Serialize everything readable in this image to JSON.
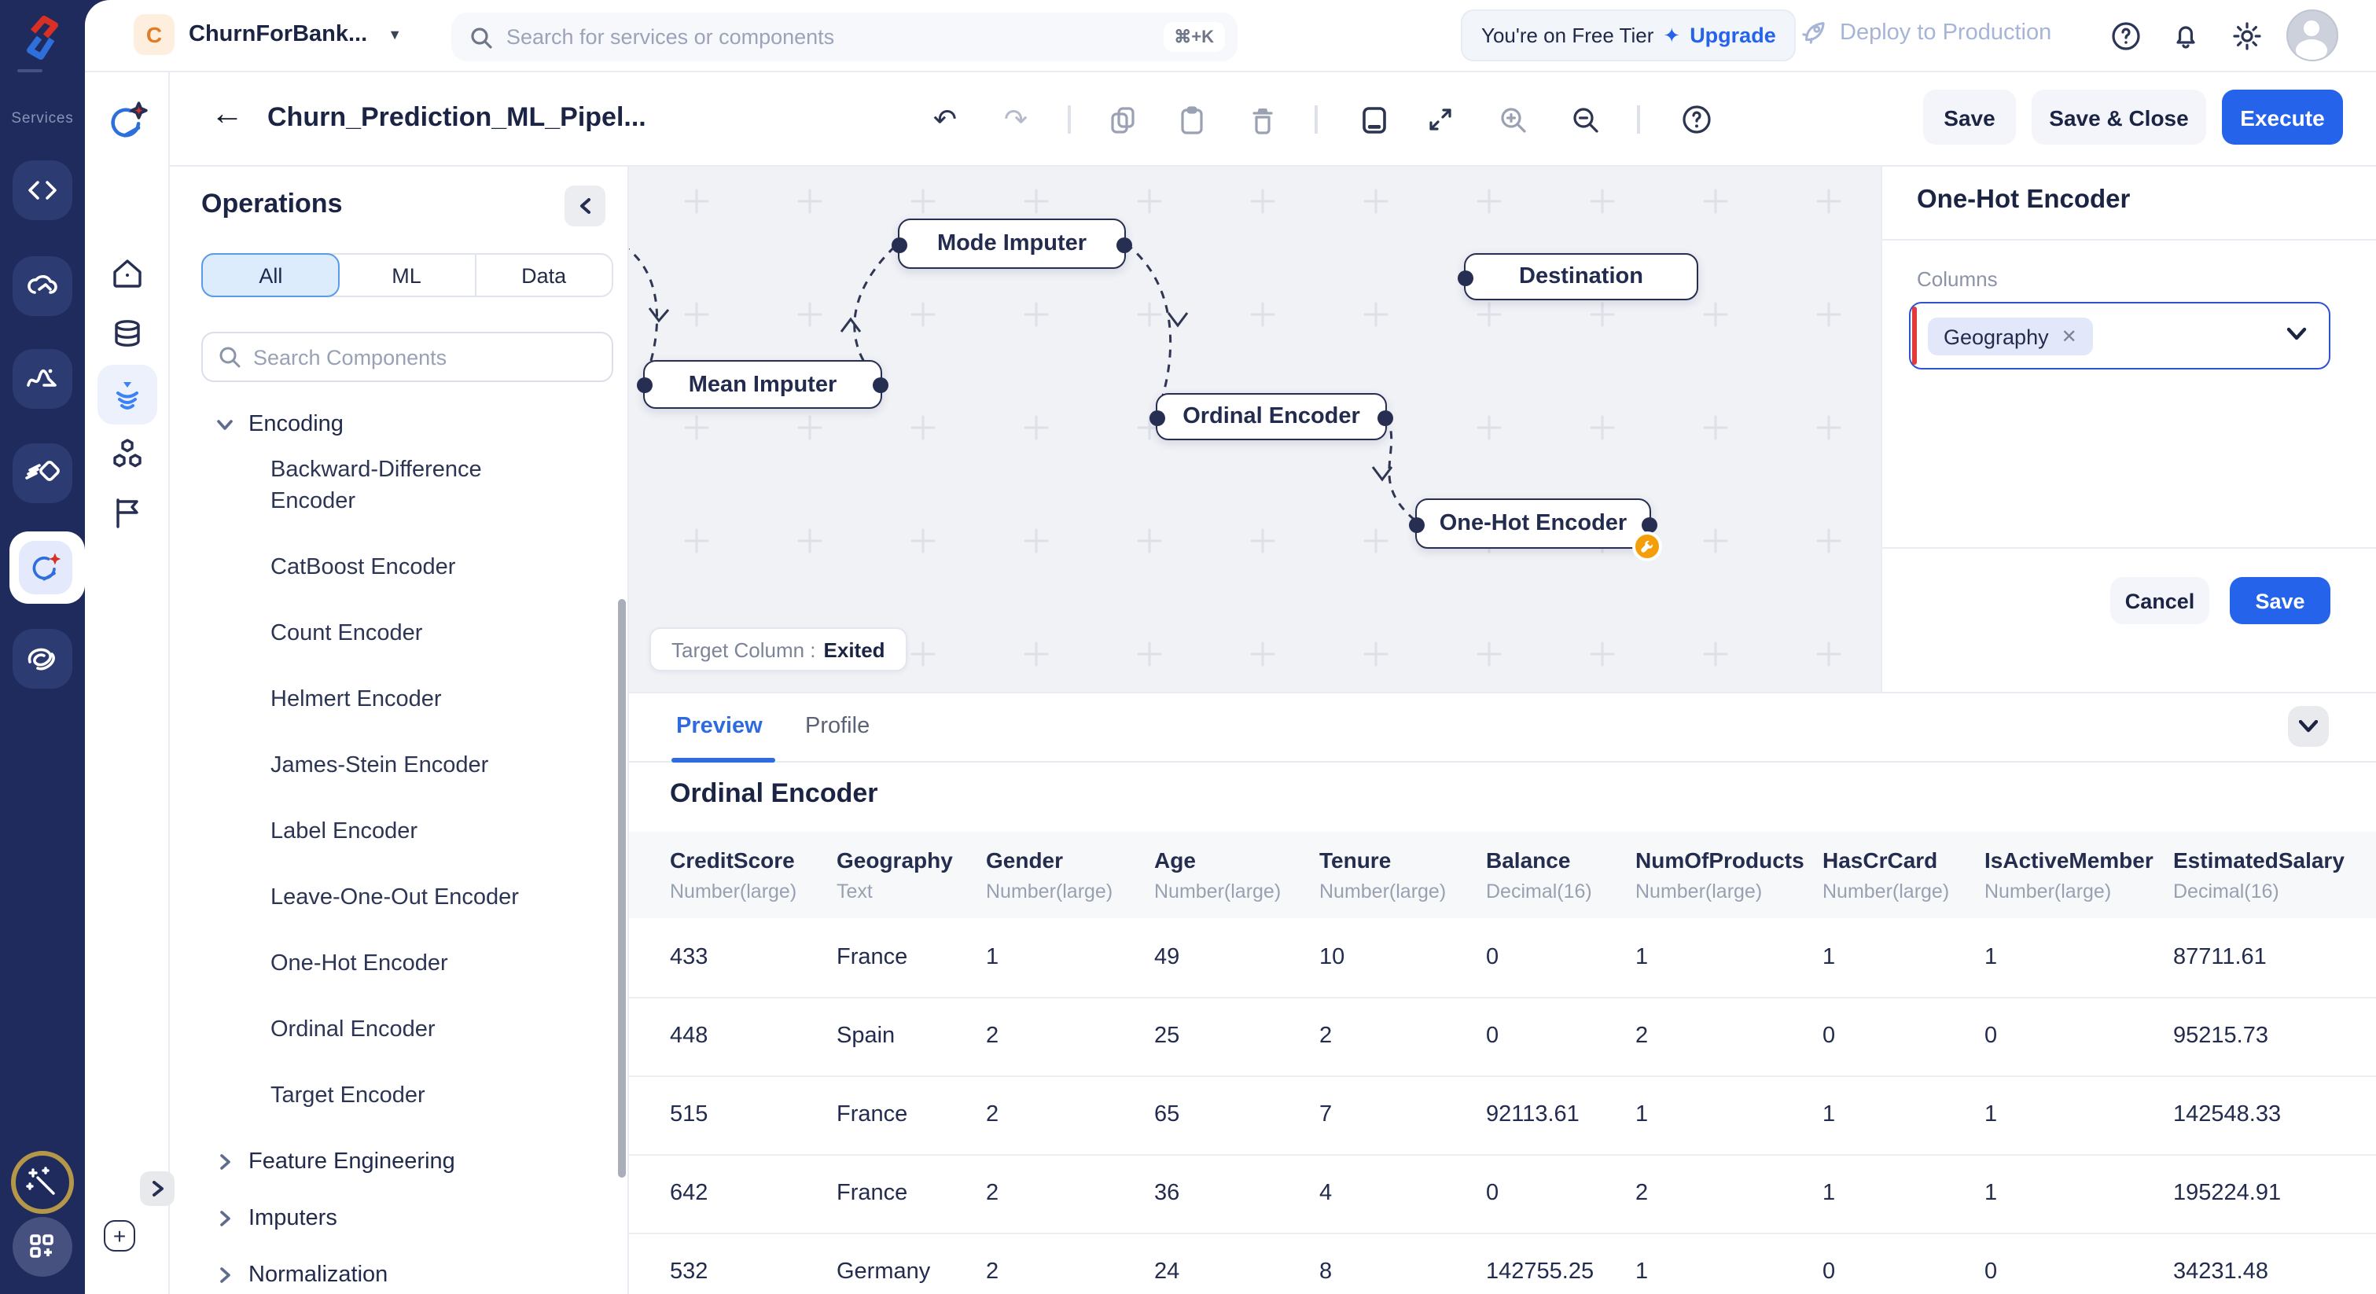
{
  "colors": {
    "accent_blue": "#2563eb",
    "navy_rail": "#1e2b5c",
    "canvas_bg": "#f1f2f6",
    "error_red": "#e23b3b",
    "warning_orange": "#f59e0b"
  },
  "topbar": {
    "workspace": {
      "initial": "C",
      "name": "ChurnForBank..."
    },
    "search": {
      "placeholder": "Search for services or components",
      "shortcut": "⌘+K"
    },
    "tier": {
      "text": "You're on Free Tier",
      "sparkle": "✦",
      "upgrade": "Upgrade"
    },
    "deploy_label": "Deploy to Production"
  },
  "rail": {
    "services_label": "Services"
  },
  "doc_header": {
    "title": "Churn_Prediction_ML_Pipel...",
    "save": "Save",
    "save_close": "Save & Close",
    "execute": "Execute"
  },
  "operations": {
    "title": "Operations",
    "tabs": [
      "All",
      "ML",
      "Data"
    ],
    "active_tab": "All",
    "search_placeholder": "Search Components",
    "groups": [
      {
        "label": "Encoding",
        "expanded": true,
        "items": [
          "Backward-Difference Encoder",
          "CatBoost Encoder",
          "Count Encoder",
          "Helmert Encoder",
          "James-Stein Encoder",
          "Label Encoder",
          "Leave-One-Out Encoder",
          "One-Hot Encoder",
          "Ordinal Encoder",
          "Target Encoder"
        ]
      },
      {
        "label": "Feature Engineering",
        "expanded": false,
        "items": []
      },
      {
        "label": "Imputers",
        "expanded": false,
        "items": []
      },
      {
        "label": "Normalization",
        "expanded": false,
        "items": []
      }
    ]
  },
  "canvas": {
    "nodes": [
      {
        "label": "Mean Imputer"
      },
      {
        "label": "Mode Imputer"
      },
      {
        "label": "Destination"
      },
      {
        "label": "Ordinal Encoder"
      },
      {
        "label": "One-Hot Encoder"
      }
    ],
    "target_column_label": "Target Column :",
    "target_column_value": "Exited"
  },
  "inspector": {
    "title": "One-Hot Encoder",
    "columns_label": "Columns",
    "selected_chip": "Geography",
    "cancel": "Cancel",
    "save": "Save"
  },
  "preview": {
    "tabs": [
      "Preview",
      "Profile"
    ],
    "active_tab": "Preview",
    "table_title": "Ordinal Encoder",
    "columns": [
      {
        "name": "CreditScore",
        "type": "Number(large)"
      },
      {
        "name": "Geography",
        "type": "Text"
      },
      {
        "name": "Gender",
        "type": "Number(large)"
      },
      {
        "name": "Age",
        "type": "Number(large)"
      },
      {
        "name": "Tenure",
        "type": "Number(large)"
      },
      {
        "name": "Balance",
        "type": "Decimal(16)"
      },
      {
        "name": "NumOfProducts",
        "type": "Number(large)"
      },
      {
        "name": "HasCrCard",
        "type": "Number(large)"
      },
      {
        "name": "IsActiveMember",
        "type": "Number(large)"
      },
      {
        "name": "EstimatedSalary",
        "type": "Decimal(16)"
      }
    ],
    "rows": [
      [
        "433",
        "France",
        "1",
        "49",
        "10",
        "0",
        "1",
        "1",
        "1",
        "87711.61"
      ],
      [
        "448",
        "Spain",
        "2",
        "25",
        "2",
        "0",
        "2",
        "0",
        "0",
        "95215.73"
      ],
      [
        "515",
        "France",
        "2",
        "65",
        "7",
        "92113.61",
        "1",
        "1",
        "1",
        "142548.33"
      ],
      [
        "642",
        "France",
        "2",
        "36",
        "4",
        "0",
        "2",
        "1",
        "1",
        "195224.91"
      ],
      [
        "532",
        "Germany",
        "2",
        "24",
        "8",
        "142755.25",
        "1",
        "0",
        "0",
        "34231.48"
      ]
    ]
  }
}
